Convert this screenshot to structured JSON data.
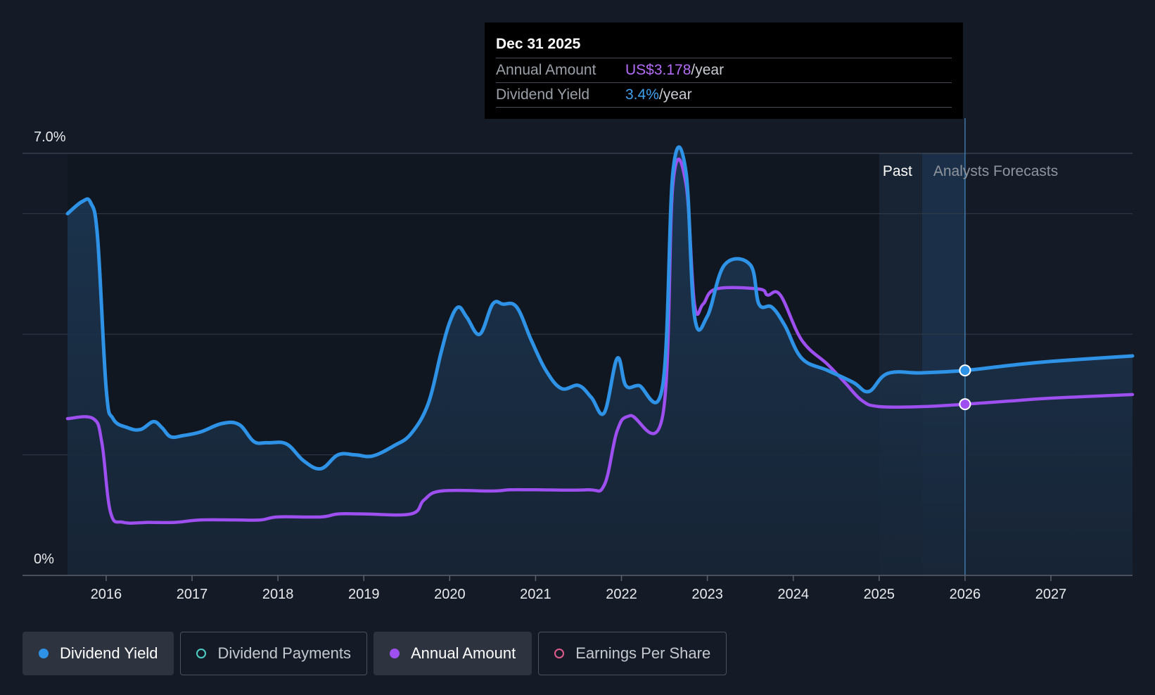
{
  "chart_data": {
    "type": "line",
    "y_axis": {
      "top_label": "7.0%",
      "bottom_label": "0%",
      "ylim": [
        0,
        7.0
      ],
      "gridlines": [
        2,
        4,
        6,
        7
      ]
    },
    "x_axis": {
      "ticks": [
        "2016",
        "2017",
        "2018",
        "2019",
        "2020",
        "2021",
        "2022",
        "2023",
        "2024",
        "2025",
        "2026",
        "2027"
      ],
      "xlim": [
        2015.55,
        2027.95
      ]
    },
    "regions": {
      "past_label": "Past",
      "forecast_label": "Analysts Forecasts",
      "past_highlight_start": 2025.0,
      "forecast_start": 2025.5,
      "current": 2026.0
    },
    "series": [
      {
        "name": "Dividend Yield",
        "color": "#2e93e6",
        "points": [
          [
            2015.55,
            6.0
          ],
          [
            2015.72,
            6.2
          ],
          [
            2015.82,
            6.18
          ],
          [
            2015.9,
            5.6
          ],
          [
            2016.0,
            3.1
          ],
          [
            2016.08,
            2.6
          ],
          [
            2016.25,
            2.45
          ],
          [
            2016.4,
            2.42
          ],
          [
            2016.55,
            2.55
          ],
          [
            2016.65,
            2.45
          ],
          [
            2016.75,
            2.3
          ],
          [
            2016.9,
            2.32
          ],
          [
            2017.1,
            2.38
          ],
          [
            2017.35,
            2.52
          ],
          [
            2017.55,
            2.5
          ],
          [
            2017.72,
            2.22
          ],
          [
            2017.88,
            2.2
          ],
          [
            2018.1,
            2.18
          ],
          [
            2018.3,
            1.9
          ],
          [
            2018.5,
            1.77
          ],
          [
            2018.7,
            2.0
          ],
          [
            2018.9,
            2.0
          ],
          [
            2019.1,
            1.98
          ],
          [
            2019.35,
            2.15
          ],
          [
            2019.55,
            2.35
          ],
          [
            2019.75,
            2.85
          ],
          [
            2019.9,
            3.7
          ],
          [
            2020.0,
            4.2
          ],
          [
            2020.1,
            4.45
          ],
          [
            2020.2,
            4.28
          ],
          [
            2020.35,
            4.0
          ],
          [
            2020.5,
            4.5
          ],
          [
            2020.62,
            4.5
          ],
          [
            2020.78,
            4.45
          ],
          [
            2020.95,
            3.9
          ],
          [
            2021.12,
            3.4
          ],
          [
            2021.3,
            3.1
          ],
          [
            2021.5,
            3.15
          ],
          [
            2021.65,
            2.95
          ],
          [
            2021.8,
            2.7
          ],
          [
            2021.95,
            3.6
          ],
          [
            2022.05,
            3.15
          ],
          [
            2022.2,
            3.15
          ],
          [
            2022.48,
            3.15
          ],
          [
            2022.6,
            6.7
          ],
          [
            2022.75,
            6.7
          ],
          [
            2022.85,
            4.3
          ],
          [
            2023.0,
            4.3
          ],
          [
            2023.2,
            5.15
          ],
          [
            2023.5,
            5.15
          ],
          [
            2023.6,
            4.5
          ],
          [
            2023.75,
            4.45
          ],
          [
            2023.9,
            4.15
          ],
          [
            2024.1,
            3.6
          ],
          [
            2024.4,
            3.4
          ],
          [
            2024.7,
            3.2
          ],
          [
            2024.88,
            3.05
          ],
          [
            2025.1,
            3.35
          ],
          [
            2025.5,
            3.36
          ],
          [
            2026.0,
            3.4
          ],
          [
            2026.5,
            3.48
          ],
          [
            2027.0,
            3.55
          ],
          [
            2027.95,
            3.64
          ]
        ]
      },
      {
        "name": "Annual Amount",
        "color": "#9d4fef",
        "points": [
          [
            2015.55,
            2.6
          ],
          [
            2015.85,
            2.6
          ],
          [
            2015.95,
            2.2
          ],
          [
            2016.05,
            1.05
          ],
          [
            2016.2,
            0.88
          ],
          [
            2016.5,
            0.88
          ],
          [
            2016.8,
            0.88
          ],
          [
            2017.1,
            0.92
          ],
          [
            2017.5,
            0.92
          ],
          [
            2017.8,
            0.92
          ],
          [
            2018.0,
            0.97
          ],
          [
            2018.5,
            0.97
          ],
          [
            2018.7,
            1.02
          ],
          [
            2019.0,
            1.02
          ],
          [
            2019.55,
            1.02
          ],
          [
            2019.7,
            1.25
          ],
          [
            2019.9,
            1.4
          ],
          [
            2020.5,
            1.4
          ],
          [
            2020.7,
            1.42
          ],
          [
            2021.0,
            1.42
          ],
          [
            2021.6,
            1.42
          ],
          [
            2021.8,
            1.5
          ],
          [
            2021.95,
            2.4
          ],
          [
            2022.1,
            2.65
          ],
          [
            2022.48,
            2.65
          ],
          [
            2022.6,
            6.5
          ],
          [
            2022.75,
            6.5
          ],
          [
            2022.85,
            4.5
          ],
          [
            2022.95,
            4.5
          ],
          [
            2023.1,
            4.75
          ],
          [
            2023.6,
            4.75
          ],
          [
            2023.7,
            4.65
          ],
          [
            2023.85,
            4.65
          ],
          [
            2024.1,
            3.9
          ],
          [
            2024.4,
            3.5
          ],
          [
            2024.6,
            3.2
          ],
          [
            2024.8,
            2.9
          ],
          [
            2025.0,
            2.8
          ],
          [
            2025.5,
            2.8
          ],
          [
            2026.0,
            2.84
          ],
          [
            2026.5,
            2.89
          ],
          [
            2027.0,
            2.94
          ],
          [
            2027.95,
            3.0
          ]
        ]
      }
    ],
    "markers": [
      {
        "series": "Dividend Yield",
        "x": 2026.0,
        "y": 3.4
      },
      {
        "series": "Annual Amount",
        "x": 2026.0,
        "y": 2.84
      }
    ]
  },
  "tooltip": {
    "date": "Dec 31 2025",
    "rows": [
      {
        "label": "Annual Amount",
        "value": "US$3.178",
        "unit": "/year"
      },
      {
        "label": "Dividend Yield",
        "value": "3.4%",
        "unit": "/year"
      }
    ]
  },
  "legend": [
    {
      "label": "Dividend Yield",
      "color": "#2e93e6",
      "state": "active"
    },
    {
      "label": "Dividend Payments",
      "color": "#4ecdc4",
      "state": "inactive"
    },
    {
      "label": "Annual Amount",
      "color": "#9d4fef",
      "state": "active"
    },
    {
      "label": "Earnings Per Share",
      "color": "#e05b8c",
      "state": "inactive"
    }
  ]
}
